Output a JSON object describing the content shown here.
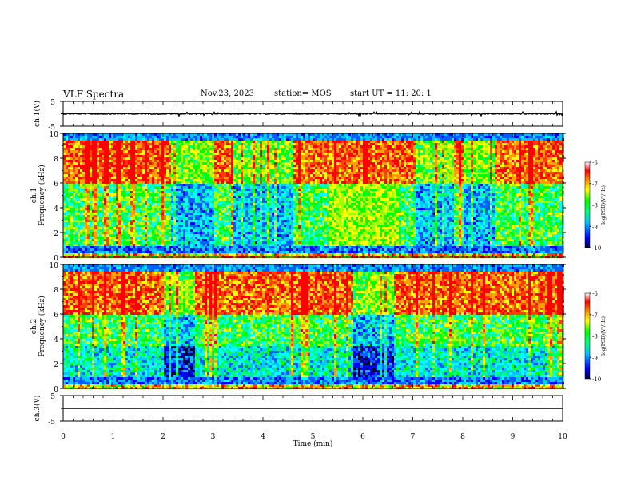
{
  "header": {
    "title": "VLF Spectra",
    "date": "Nov.23, 2023",
    "station": "station= MOS",
    "start_ut": "start  UT =  11: 20: 1"
  },
  "chart_data": [
    {
      "type": "line",
      "panel": "ch1-waveform",
      "ylabel": "ch.1(V)",
      "ylim": [
        -5,
        5
      ],
      "yticks": [
        "5",
        "-5"
      ],
      "description_values": {
        "baseline": 0
      }
    },
    {
      "type": "heatmap",
      "panel": "ch1-spectrogram",
      "ylabel": "ch.1\nFrequency (kHz)",
      "ylabel_line1": "ch.1",
      "ylabel_line2": "Frequency (kHz)",
      "ylim": [
        0,
        10
      ],
      "yticks": [
        "0",
        "2",
        "4",
        "6",
        "8",
        "10"
      ],
      "colorbar": {
        "label": "log(PSD)(V²/Hz)",
        "range": [
          -10,
          -6
        ],
        "ticks": [
          "-6",
          "-7",
          "-8",
          "-9",
          "-10"
        ]
      }
    },
    {
      "type": "heatmap",
      "panel": "ch2-spectrogram",
      "ylabel_line1": "ch.2",
      "ylabel_line2": "Frequency (kHz)",
      "ylim": [
        0,
        10
      ],
      "yticks": [
        "0",
        "2",
        "4",
        "6",
        "8",
        "10"
      ],
      "colorbar": {
        "label": "log(PSD)(V²/Hz)",
        "range": [
          -10,
          -6
        ],
        "ticks": [
          "-6",
          "-7",
          "-8",
          "-9",
          "-10"
        ]
      }
    },
    {
      "type": "line",
      "panel": "ch3-waveform",
      "ylabel": "ch.3(V)",
      "ylim": [
        -5,
        5
      ],
      "yticks": [
        "5",
        "-5"
      ],
      "xlabel": "Time (min)",
      "xlim": [
        0,
        10
      ],
      "xticks": [
        "0",
        "1",
        "2",
        "3",
        "4",
        "5",
        "6",
        "7",
        "8",
        "9",
        "10"
      ]
    }
  ],
  "colors": {
    "colormap": [
      "#00004a",
      "#0000ff",
      "#00a0ff",
      "#00ffff",
      "#00ff00",
      "#c8ff00",
      "#ffff00",
      "#ff8000",
      "#ff0000",
      "#ffffff"
    ]
  }
}
